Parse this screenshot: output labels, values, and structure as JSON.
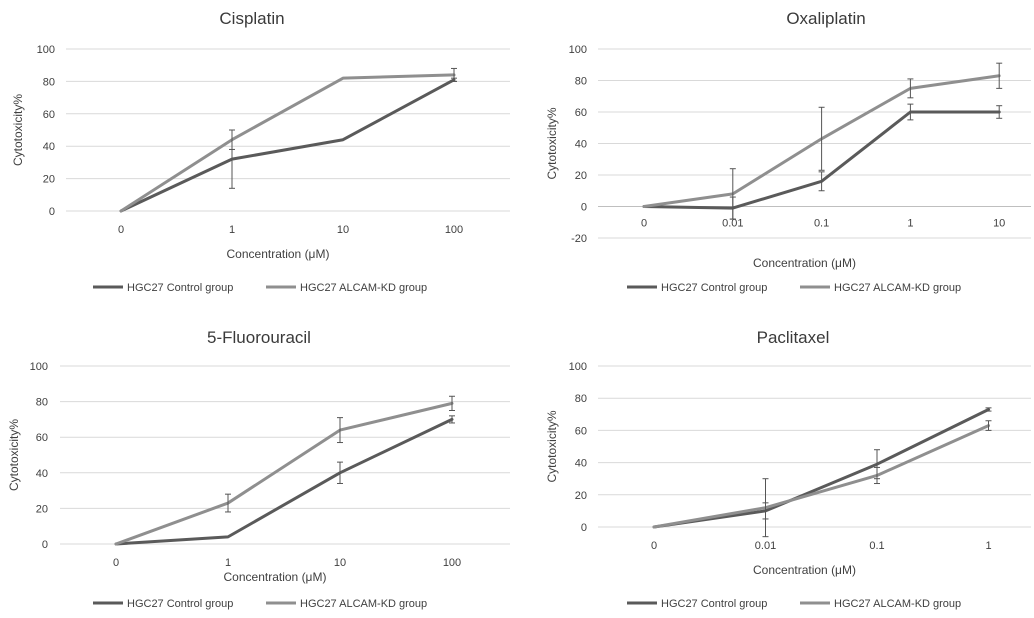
{
  "chart_data": [
    {
      "type": "line",
      "title": "Cisplatin",
      "xlabel": "Concentration (μM)",
      "ylabel": "Cytotoxicity%",
      "categories": [
        "0",
        "1",
        "10",
        "100"
      ],
      "ylim": [
        0,
        100
      ],
      "yticks": [
        0,
        20,
        40,
        60,
        80,
        100
      ],
      "grid": true,
      "legend_position": "bottom",
      "series": [
        {
          "name": "HGC27 Control group",
          "color": "#5a5a5a",
          "values": [
            0,
            32,
            44,
            81
          ],
          "errors": [
            0,
            18,
            0,
            1
          ]
        },
        {
          "name": "HGC27 ALCAM-KD group",
          "color": "#8f8f8f",
          "values": [
            0,
            44,
            82,
            84
          ],
          "errors": [
            0,
            6,
            0,
            4
          ]
        }
      ]
    },
    {
      "type": "line",
      "title": "Oxaliplatin",
      "xlabel": "Concentration (μM)",
      "ylabel": "Cytotoxicity%",
      "categories": [
        "0",
        "0.01",
        "0.1",
        "1",
        "10"
      ],
      "ylim": [
        -20,
        100
      ],
      "yticks": [
        -20,
        0,
        20,
        40,
        60,
        80,
        100
      ],
      "grid": true,
      "legend_position": "bottom",
      "series": [
        {
          "name": "HGC27 Control group",
          "color": "#5a5a5a",
          "values": [
            0,
            -1,
            16,
            60,
            60
          ],
          "errors": [
            0,
            7,
            6,
            5,
            4
          ]
        },
        {
          "name": "HGC27 ALCAM-KD group",
          "color": "#8f8f8f",
          "values": [
            0,
            8,
            43,
            75,
            83
          ],
          "errors": [
            0,
            16,
            20,
            6,
            8
          ]
        }
      ]
    },
    {
      "type": "line",
      "title": "5-Fluorouracil",
      "xlabel": "Concentration (μM)",
      "ylabel": "Cytotoxicity%",
      "categories": [
        "0",
        "1",
        "10",
        "100"
      ],
      "ylim": [
        0,
        100
      ],
      "yticks": [
        0,
        20,
        40,
        60,
        80,
        100
      ],
      "grid": true,
      "legend_position": "bottom",
      "series": [
        {
          "name": "HGC27 Control group",
          "color": "#5a5a5a",
          "values": [
            0,
            4,
            40,
            70
          ],
          "errors": [
            0,
            0,
            6,
            2
          ]
        },
        {
          "name": "HGC27 ALCAM-KD group",
          "color": "#8f8f8f",
          "values": [
            0,
            23,
            64,
            79
          ],
          "errors": [
            0,
            5,
            7,
            4
          ]
        }
      ]
    },
    {
      "type": "line",
      "title": "Paclitaxel",
      "xlabel": "Concentration (μM)",
      "ylabel": "Cytotoxicity%",
      "categories": [
        "0",
        "0.01",
        "0.1",
        "1"
      ],
      "ylim": [
        0,
        100
      ],
      "yticks": [
        0,
        20,
        40,
        60,
        80,
        100
      ],
      "grid": true,
      "legend_position": "bottom",
      "series": [
        {
          "name": "HGC27 Control group",
          "color": "#5a5a5a",
          "values": [
            0,
            10,
            39,
            73
          ],
          "errors": [
            0,
            5,
            9,
            1
          ]
        },
        {
          "name": "HGC27 ALCAM-KD group",
          "color": "#8f8f8f",
          "values": [
            0,
            12,
            32,
            63
          ],
          "errors": [
            0,
            18,
            5,
            3
          ]
        }
      ]
    }
  ]
}
